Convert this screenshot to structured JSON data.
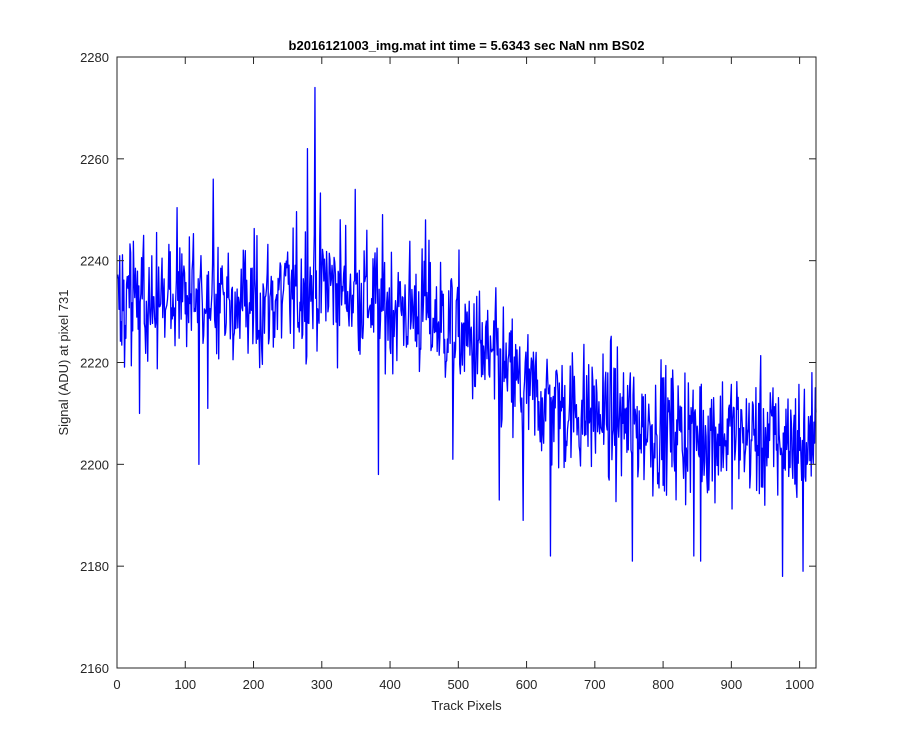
{
  "chart_data": {
    "type": "line",
    "title": "b2016121003_img.mat int time = 5.6343 sec  NaN nm BS02",
    "xlabel": "Track Pixels",
    "ylabel": "Signal (ADU) at pixel 731",
    "xlim": [
      0,
      1024
    ],
    "ylim": [
      2160,
      2280
    ],
    "xticks": [
      0,
      100,
      200,
      300,
      400,
      500,
      600,
      700,
      800,
      900,
      1000
    ],
    "yticks": [
      2160,
      2180,
      2200,
      2220,
      2240,
      2260,
      2280
    ],
    "grid": false,
    "series": [
      {
        "name": "Signal",
        "color": "#0000ff",
        "trend": {
          "x": [
            0,
            100,
            200,
            250,
            300,
            350,
            400,
            450,
            500,
            550,
            600,
            650,
            700,
            750,
            800,
            850,
            900,
            950,
            1024
          ],
          "y": [
            2233,
            2233,
            2231,
            2233,
            2236,
            2234,
            2231,
            2230,
            2226,
            2220,
            2214,
            2211,
            2210,
            2208,
            2207,
            2206,
            2206,
            2205,
            2204
          ]
        },
        "noise_amplitude": 7,
        "n_points": 1024,
        "notable_points": [
          {
            "x": 33,
            "y": 2210
          },
          {
            "x": 120,
            "y": 2200
          },
          {
            "x": 133,
            "y": 2211
          },
          {
            "x": 141,
            "y": 2256
          },
          {
            "x": 279,
            "y": 2262
          },
          {
            "x": 290,
            "y": 2274
          },
          {
            "x": 349,
            "y": 2254
          },
          {
            "x": 383,
            "y": 2198
          },
          {
            "x": 452,
            "y": 2248
          },
          {
            "x": 492,
            "y": 2201
          },
          {
            "x": 560,
            "y": 2193
          },
          {
            "x": 595,
            "y": 2189
          },
          {
            "x": 635,
            "y": 2182
          },
          {
            "x": 755,
            "y": 2181
          },
          {
            "x": 845,
            "y": 2182
          },
          {
            "x": 855,
            "y": 2181
          },
          {
            "x": 975,
            "y": 2178
          },
          {
            "x": 1005,
            "y": 2179
          },
          {
            "x": 1018,
            "y": 2218
          }
        ]
      }
    ]
  }
}
